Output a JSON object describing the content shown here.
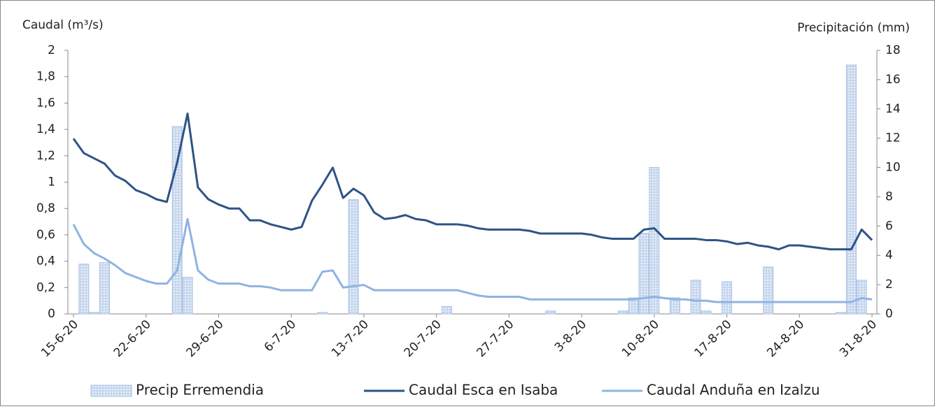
{
  "chart_data": {
    "type": "bar-line",
    "y_label": "Caudal (m³/s)",
    "y2_label": "Precipitación (mm)",
    "categories": [
      "15-6-20",
      null,
      null,
      null,
      null,
      null,
      null,
      "22-6-20",
      null,
      null,
      null,
      null,
      null,
      null,
      "29-6-20",
      null,
      null,
      null,
      null,
      null,
      null,
      "6-7-20",
      null,
      null,
      null,
      null,
      null,
      null,
      "13-7-20",
      null,
      null,
      null,
      null,
      null,
      null,
      "20-7-20",
      null,
      null,
      null,
      null,
      null,
      null,
      "27-7-20",
      null,
      null,
      null,
      null,
      null,
      null,
      "3-8-20",
      null,
      null,
      null,
      null,
      null,
      null,
      "10-8-20",
      null,
      null,
      null,
      null,
      null,
      null,
      "17-8-20",
      null,
      null,
      null,
      null,
      null,
      null,
      "24-8-20",
      null,
      null,
      null,
      null,
      null,
      null,
      "31-8-20"
    ],
    "series": [
      {
        "name": "Precip Erremendia",
        "type": "bar",
        "axis": "y2",
        "color": "#c6d7ee",
        "values": [
          0,
          3.4,
          0.1,
          3.5,
          0,
          0,
          0,
          0,
          0,
          0,
          12.8,
          2.5,
          0,
          0,
          0,
          0,
          0,
          0,
          0,
          0,
          0,
          0,
          0,
          0,
          0.1,
          0,
          0,
          7.8,
          0,
          0,
          0,
          0,
          0,
          0,
          0,
          0,
          0.5,
          0,
          0,
          0,
          0,
          0,
          0,
          0,
          0,
          0,
          0.2,
          0,
          0,
          0,
          0,
          0,
          0,
          0.2,
          1.1,
          5.5,
          10,
          0,
          1.1,
          0,
          2.3,
          0.2,
          0,
          2.2,
          0,
          0,
          0,
          3.2,
          0,
          0,
          0,
          0,
          0,
          0,
          0.1,
          17,
          2.3,
          0
        ]
      },
      {
        "name": "Caudal Esca en Isaba",
        "type": "line",
        "axis": "y",
        "color": "#2e5486",
        "values": [
          1.33,
          1.22,
          1.18,
          1.14,
          1.05,
          1.01,
          0.94,
          0.91,
          0.87,
          0.85,
          1.15,
          1.52,
          0.96,
          0.87,
          0.83,
          0.8,
          0.8,
          0.71,
          0.71,
          0.68,
          0.66,
          0.64,
          0.66,
          0.86,
          0.98,
          1.11,
          0.88,
          0.95,
          0.9,
          0.77,
          0.72,
          0.73,
          0.75,
          0.72,
          0.71,
          0.68,
          0.68,
          0.68,
          0.67,
          0.65,
          0.64,
          0.64,
          0.64,
          0.64,
          0.63,
          0.61,
          0.61,
          0.61,
          0.61,
          0.61,
          0.6,
          0.58,
          0.57,
          0.57,
          0.57,
          0.64,
          0.65,
          0.57,
          0.57,
          0.57,
          0.57,
          0.56,
          0.56,
          0.55,
          0.53,
          0.54,
          0.52,
          0.51,
          0.49,
          0.52,
          0.52,
          0.51,
          0.5,
          0.49,
          0.49,
          0.49,
          0.64,
          0.56
        ]
      },
      {
        "name": "Caudal Anduña en Izalzu",
        "type": "line",
        "axis": "y",
        "color": "#8fb3e2",
        "values": [
          0.68,
          0.53,
          0.46,
          0.42,
          0.37,
          0.31,
          0.28,
          0.25,
          0.23,
          0.23,
          0.33,
          0.72,
          0.33,
          0.26,
          0.23,
          0.23,
          0.23,
          0.21,
          0.21,
          0.2,
          0.18,
          0.18,
          0.18,
          0.18,
          0.32,
          0.33,
          0.2,
          0.21,
          0.22,
          0.18,
          0.18,
          0.18,
          0.18,
          0.18,
          0.18,
          0.18,
          0.18,
          0.18,
          0.16,
          0.14,
          0.13,
          0.13,
          0.13,
          0.13,
          0.11,
          0.11,
          0.11,
          0.11,
          0.11,
          0.11,
          0.11,
          0.11,
          0.11,
          0.11,
          0.11,
          0.12,
          0.13,
          0.12,
          0.11,
          0.11,
          0.1,
          0.1,
          0.09,
          0.09,
          0.09,
          0.09,
          0.09,
          0.09,
          0.09,
          0.09,
          0.09,
          0.09,
          0.09,
          0.09,
          0.09,
          0.09,
          0.12,
          0.11
        ]
      }
    ],
    "ylim": [
      0,
      2
    ],
    "yticks": [
      0,
      {
        "value": 0.2,
        "label": "0,2"
      },
      {
        "value": 0.4,
        "label": "0,4"
      },
      {
        "value": 0.6,
        "label": "0,6"
      },
      {
        "value": 0.8,
        "label": "0,8"
      },
      1,
      {
        "value": 1.2,
        "label": "1,2"
      },
      {
        "value": 1.4,
        "label": "1,4"
      },
      {
        "value": 1.6,
        "label": "1,6"
      },
      {
        "value": 1.8,
        "label": "1,8"
      },
      2
    ],
    "y2lim": [
      0,
      18
    ],
    "y2ticks": [
      0,
      2,
      4,
      6,
      8,
      10,
      12,
      14,
      16,
      18
    ],
    "legend": "bottom"
  }
}
